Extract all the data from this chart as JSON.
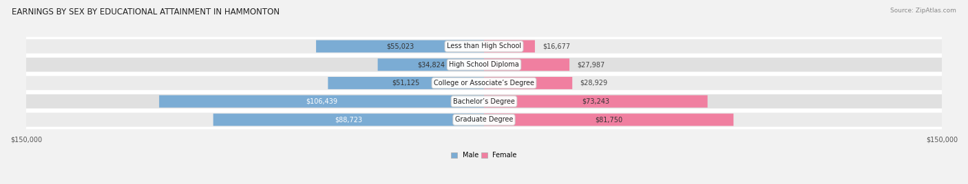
{
  "title": "EARNINGS BY SEX BY EDUCATIONAL ATTAINMENT IN HAMMONTON",
  "source": "Source: ZipAtlas.com",
  "categories": [
    "Less than High School",
    "High School Diploma",
    "College or Associate’s Degree",
    "Bachelor’s Degree",
    "Graduate Degree"
  ],
  "male_values": [
    55023,
    34824,
    51125,
    106439,
    88723
  ],
  "female_values": [
    16677,
    27987,
    28929,
    73243,
    81750
  ],
  "male_color": "#7bacd4",
  "female_color": "#f07fa0",
  "max_val": 150000,
  "bg_color": "#f2f2f2",
  "row_colors": [
    "#ebebeb",
    "#e0e0e0"
  ],
  "title_fontsize": 8.5,
  "source_fontsize": 6.5,
  "bar_label_fontsize": 7.0,
  "category_fontsize": 7.0,
  "axis_label_fontsize": 7.0,
  "inside_label_threshold": 60000,
  "female_inside_threshold": 40000
}
